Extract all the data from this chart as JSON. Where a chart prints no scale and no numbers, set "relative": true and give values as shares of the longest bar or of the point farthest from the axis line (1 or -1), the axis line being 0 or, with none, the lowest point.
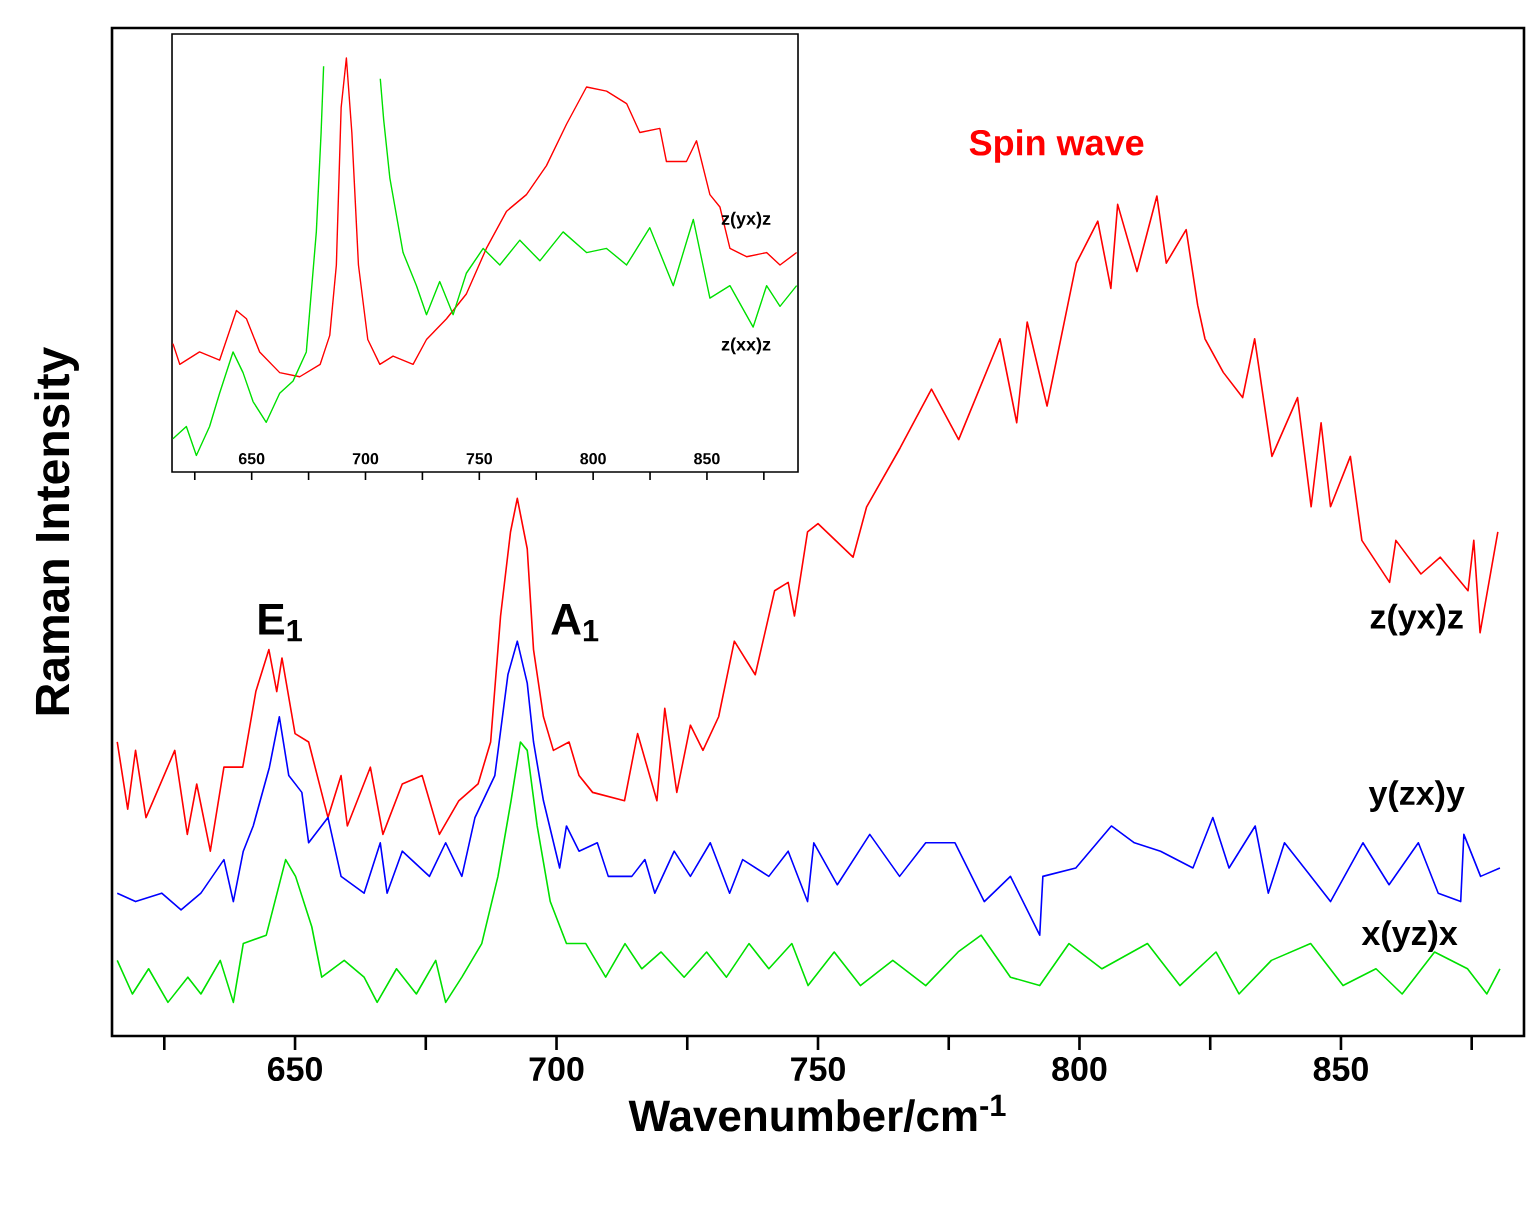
{
  "chart_data": [
    {
      "type": "line",
      "xlabel": "Wavenumber/cm$^{-1}$",
      "ylabel": "Raman Intensity",
      "relative": true,
      "xlim": [
        615,
        885
      ],
      "xticks": [
        {
          "value": 625,
          "label": null
        },
        650,
        {
          "value": 675,
          "label": null
        },
        700,
        {
          "value": 725,
          "label": null
        },
        750,
        {
          "value": 775,
          "label": null
        },
        800,
        {
          "value": 825,
          "label": null
        },
        850,
        {
          "value": 875,
          "label": null
        }
      ],
      "annotations": [
        "Spin wave",
        "E$_{1}$",
        "A$_{1}$"
      ],
      "series": [
        {
          "name": "z(yx)z",
          "color": "#ff0000",
          "x": [
            616,
            618,
            619.5,
            621.5,
            627,
            629.4,
            631.2,
            633.8,
            636.4,
            640,
            642.5,
            645,
            646.5,
            647.5,
            650,
            652.6,
            656.3,
            658.8,
            660,
            664.4,
            666.8,
            670.5,
            674.3,
            677.6,
            681.3,
            685,
            687.4,
            689.3,
            691.2,
            692.5,
            694.4,
            695.6,
            697.5,
            699.4,
            702.4,
            704.3,
            706.9,
            713,
            715.5,
            719.2,
            720.7,
            723,
            725.6,
            728,
            731,
            734,
            738,
            741.7,
            744.3,
            745.5,
            748,
            750,
            756.7,
            759.3,
            765.7,
            771.7,
            776.9,
            784.8,
            788,
            790,
            793.8,
            799.4,
            803.5,
            806,
            807.3,
            811,
            814.8,
            816.6,
            820.4,
            822.6,
            824,
            827.5,
            831.2,
            833.5,
            836.8,
            841.7,
            844.3,
            846.2,
            848,
            851.8,
            854,
            859.3,
            860.5,
            865.3,
            869,
            874.3,
            875.4,
            876.6,
            880
          ],
          "values": [
            0.35,
            0.27,
            0.34,
            0.26,
            0.34,
            0.24,
            0.3,
            0.22,
            0.32,
            0.32,
            0.41,
            0.46,
            0.41,
            0.45,
            0.36,
            0.35,
            0.26,
            0.31,
            0.25,
            0.32,
            0.24,
            0.3,
            0.31,
            0.24,
            0.28,
            0.3,
            0.35,
            0.5,
            0.6,
            0.64,
            0.58,
            0.46,
            0.38,
            0.34,
            0.35,
            0.31,
            0.29,
            0.28,
            0.36,
            0.28,
            0.39,
            0.29,
            0.37,
            0.34,
            0.38,
            0.47,
            0.43,
            0.53,
            0.54,
            0.5,
            0.6,
            0.61,
            0.57,
            0.63,
            0.7,
            0.77,
            0.71,
            0.83,
            0.73,
            0.85,
            0.75,
            0.92,
            0.97,
            0.89,
            0.99,
            0.91,
            1.0,
            0.92,
            0.96,
            0.87,
            0.83,
            0.79,
            0.76,
            0.83,
            0.69,
            0.76,
            0.63,
            0.73,
            0.63,
            0.69,
            0.59,
            0.54,
            0.59,
            0.55,
            0.57,
            0.53,
            0.59,
            0.48,
            0.6
          ]
        },
        {
          "name": "y(zx)y",
          "color": "#0000ff",
          "x": [
            616,
            619.5,
            624.5,
            628.2,
            632,
            636.4,
            638.2,
            640.1,
            642,
            645.1,
            647,
            648.8,
            651.3,
            652.6,
            656.3,
            658.8,
            663.2,
            666.3,
            667.6,
            670.5,
            675.7,
            678.8,
            681.9,
            684.4,
            688.2,
            690.7,
            692.5,
            694.4,
            695.6,
            697.5,
            700.6,
            701.9,
            704.3,
            707.8,
            709.9,
            714.4,
            716.9,
            718.8,
            722.5,
            725.6,
            729.4,
            733.1,
            735.6,
            740.6,
            744.3,
            748,
            749.2,
            753.7,
            759.9,
            765.6,
            770.6,
            776.2,
            781.8,
            786.8,
            792.4,
            793,
            799.3,
            806.1,
            810.5,
            815.5,
            821.7,
            825.5,
            828.6,
            833.6,
            836.1,
            839.2,
            843,
            848,
            854.2,
            859.2,
            864.8,
            868.6,
            872.9,
            873.5,
            876.7,
            880.4
          ],
          "values": [
            0.17,
            0.16,
            0.17,
            0.15,
            0.17,
            0.21,
            0.16,
            0.22,
            0.25,
            0.32,
            0.38,
            0.31,
            0.29,
            0.23,
            0.26,
            0.19,
            0.17,
            0.23,
            0.17,
            0.22,
            0.19,
            0.23,
            0.19,
            0.26,
            0.31,
            0.43,
            0.47,
            0.42,
            0.35,
            0.28,
            0.2,
            0.25,
            0.22,
            0.23,
            0.19,
            0.19,
            0.21,
            0.17,
            0.22,
            0.19,
            0.23,
            0.17,
            0.21,
            0.19,
            0.22,
            0.16,
            0.23,
            0.18,
            0.24,
            0.19,
            0.23,
            0.23,
            0.16,
            0.19,
            0.12,
            0.19,
            0.2,
            0.25,
            0.23,
            0.22,
            0.2,
            0.26,
            0.2,
            0.25,
            0.17,
            0.23,
            0.2,
            0.16,
            0.23,
            0.18,
            0.23,
            0.17,
            0.16,
            0.24,
            0.19,
            0.2
          ]
        },
        {
          "name": "x(yz)x",
          "color": "#00e000",
          "x": [
            616,
            618.9,
            622,
            625.7,
            629.5,
            632,
            635.7,
            638.2,
            640.1,
            644.5,
            648.2,
            650.1,
            653.2,
            655.1,
            659.4,
            663.2,
            665.7,
            669.4,
            673.2,
            676.9,
            678.8,
            681.9,
            685.7,
            688.8,
            691.3,
            693.1,
            694.4,
            696.3,
            698.8,
            701.9,
            705.6,
            709.4,
            713.1,
            716.3,
            720,
            724.4,
            728.7,
            732.5,
            736.8,
            740.6,
            745,
            748.1,
            753.1,
            758.1,
            764.3,
            770.6,
            776.8,
            781.2,
            786.8,
            792.4,
            798,
            804.3,
            813,
            819.2,
            826.1,
            830.5,
            836.7,
            844.2,
            850.4,
            856.7,
            861.7,
            867.9,
            874.2,
            877.9,
            880.4
          ],
          "values": [
            0.09,
            0.05,
            0.08,
            0.04,
            0.07,
            0.05,
            0.09,
            0.04,
            0.11,
            0.12,
            0.21,
            0.19,
            0.13,
            0.07,
            0.09,
            0.07,
            0.04,
            0.08,
            0.05,
            0.09,
            0.04,
            0.07,
            0.11,
            0.19,
            0.28,
            0.35,
            0.34,
            0.25,
            0.16,
            0.11,
            0.11,
            0.07,
            0.11,
            0.08,
            0.1,
            0.07,
            0.1,
            0.07,
            0.11,
            0.08,
            0.11,
            0.06,
            0.1,
            0.06,
            0.09,
            0.06,
            0.1,
            0.12,
            0.07,
            0.06,
            0.11,
            0.08,
            0.11,
            0.06,
            0.1,
            0.05,
            0.09,
            0.11,
            0.06,
            0.08,
            0.05,
            0.1,
            0.08,
            0.05,
            0.08
          ]
        }
      ]
    },
    {
      "type": "line",
      "relative": true,
      "xlim": [
        615,
        890
      ],
      "xticks": [
        {
          "value": 625,
          "label": null
        },
        650,
        {
          "value": 675,
          "label": null
        },
        700,
        {
          "value": 725,
          "label": null
        },
        750,
        {
          "value": 775,
          "label": null
        },
        800,
        {
          "value": 825,
          "label": null
        },
        850,
        {
          "value": 875,
          "label": null
        }
      ],
      "series": [
        {
          "name": "z(yx)z",
          "color": "#ff0000",
          "x": [
            615.4,
            618.4,
            627.1,
            635.9,
            643.3,
            647.7,
            653.5,
            662.3,
            671.1,
            680.1,
            684.3,
            687.2,
            689.3,
            691.6,
            694,
            696.9,
            701,
            706.3,
            712.1,
            720.9,
            726.8,
            735.6,
            744.3,
            753.1,
            762,
            770.7,
            779.5,
            788.3,
            797.1,
            805.9,
            814.7,
            820.5,
            829.3,
            832.2,
            841,
            845.4,
            851.3,
            855.7,
            860.1,
            867.4,
            876.2,
            882.1,
            889.4
          ],
          "values": [
            0.31,
            0.26,
            0.29,
            0.27,
            0.39,
            0.37,
            0.29,
            0.24,
            0.23,
            0.26,
            0.33,
            0.5,
            0.88,
            1.0,
            0.82,
            0.5,
            0.32,
            0.26,
            0.28,
            0.26,
            0.32,
            0.37,
            0.43,
            0.54,
            0.63,
            0.67,
            0.74,
            0.84,
            0.93,
            0.92,
            0.89,
            0.82,
            0.83,
            0.75,
            0.75,
            0.8,
            0.67,
            0.64,
            0.54,
            0.52,
            0.53,
            0.5,
            0.53
          ]
        },
        {
          "name": "z(xx)z",
          "color": "#00e000",
          "x": [
            615.4,
            621.3,
            625.7,
            631.5,
            635.9,
            641.8,
            646.2,
            650.6,
            656.4,
            662.3,
            668.2,
            674,
            678.4,
            680.5,
            681.6,
            694,
            706.5,
            708,
            710.7,
            716.5,
            722.4,
            726.8,
            732.6,
            738.5,
            744.3,
            751.7,
            759,
            767.8,
            776.6,
            786.8,
            797.1,
            805.9,
            814.7,
            824.9,
            835.2,
            844,
            851.3,
            860.1,
            870.3,
            876.2,
            882.1,
            889.4
          ],
          "values": [
            0.08,
            0.11,
            0.04,
            0.11,
            0.19,
            0.29,
            0.24,
            0.17,
            0.12,
            0.19,
            0.22,
            0.29,
            0.58,
            0.82,
            0.98,
            null,
            0.95,
            0.85,
            0.71,
            0.53,
            0.45,
            0.38,
            0.46,
            0.38,
            0.48,
            0.54,
            0.5,
            0.56,
            0.51,
            0.58,
            0.53,
            0.54,
            0.5,
            0.59,
            0.45,
            0.61,
            0.42,
            0.45,
            0.35,
            0.45,
            0.4,
            0.45
          ]
        }
      ]
    }
  ]
}
